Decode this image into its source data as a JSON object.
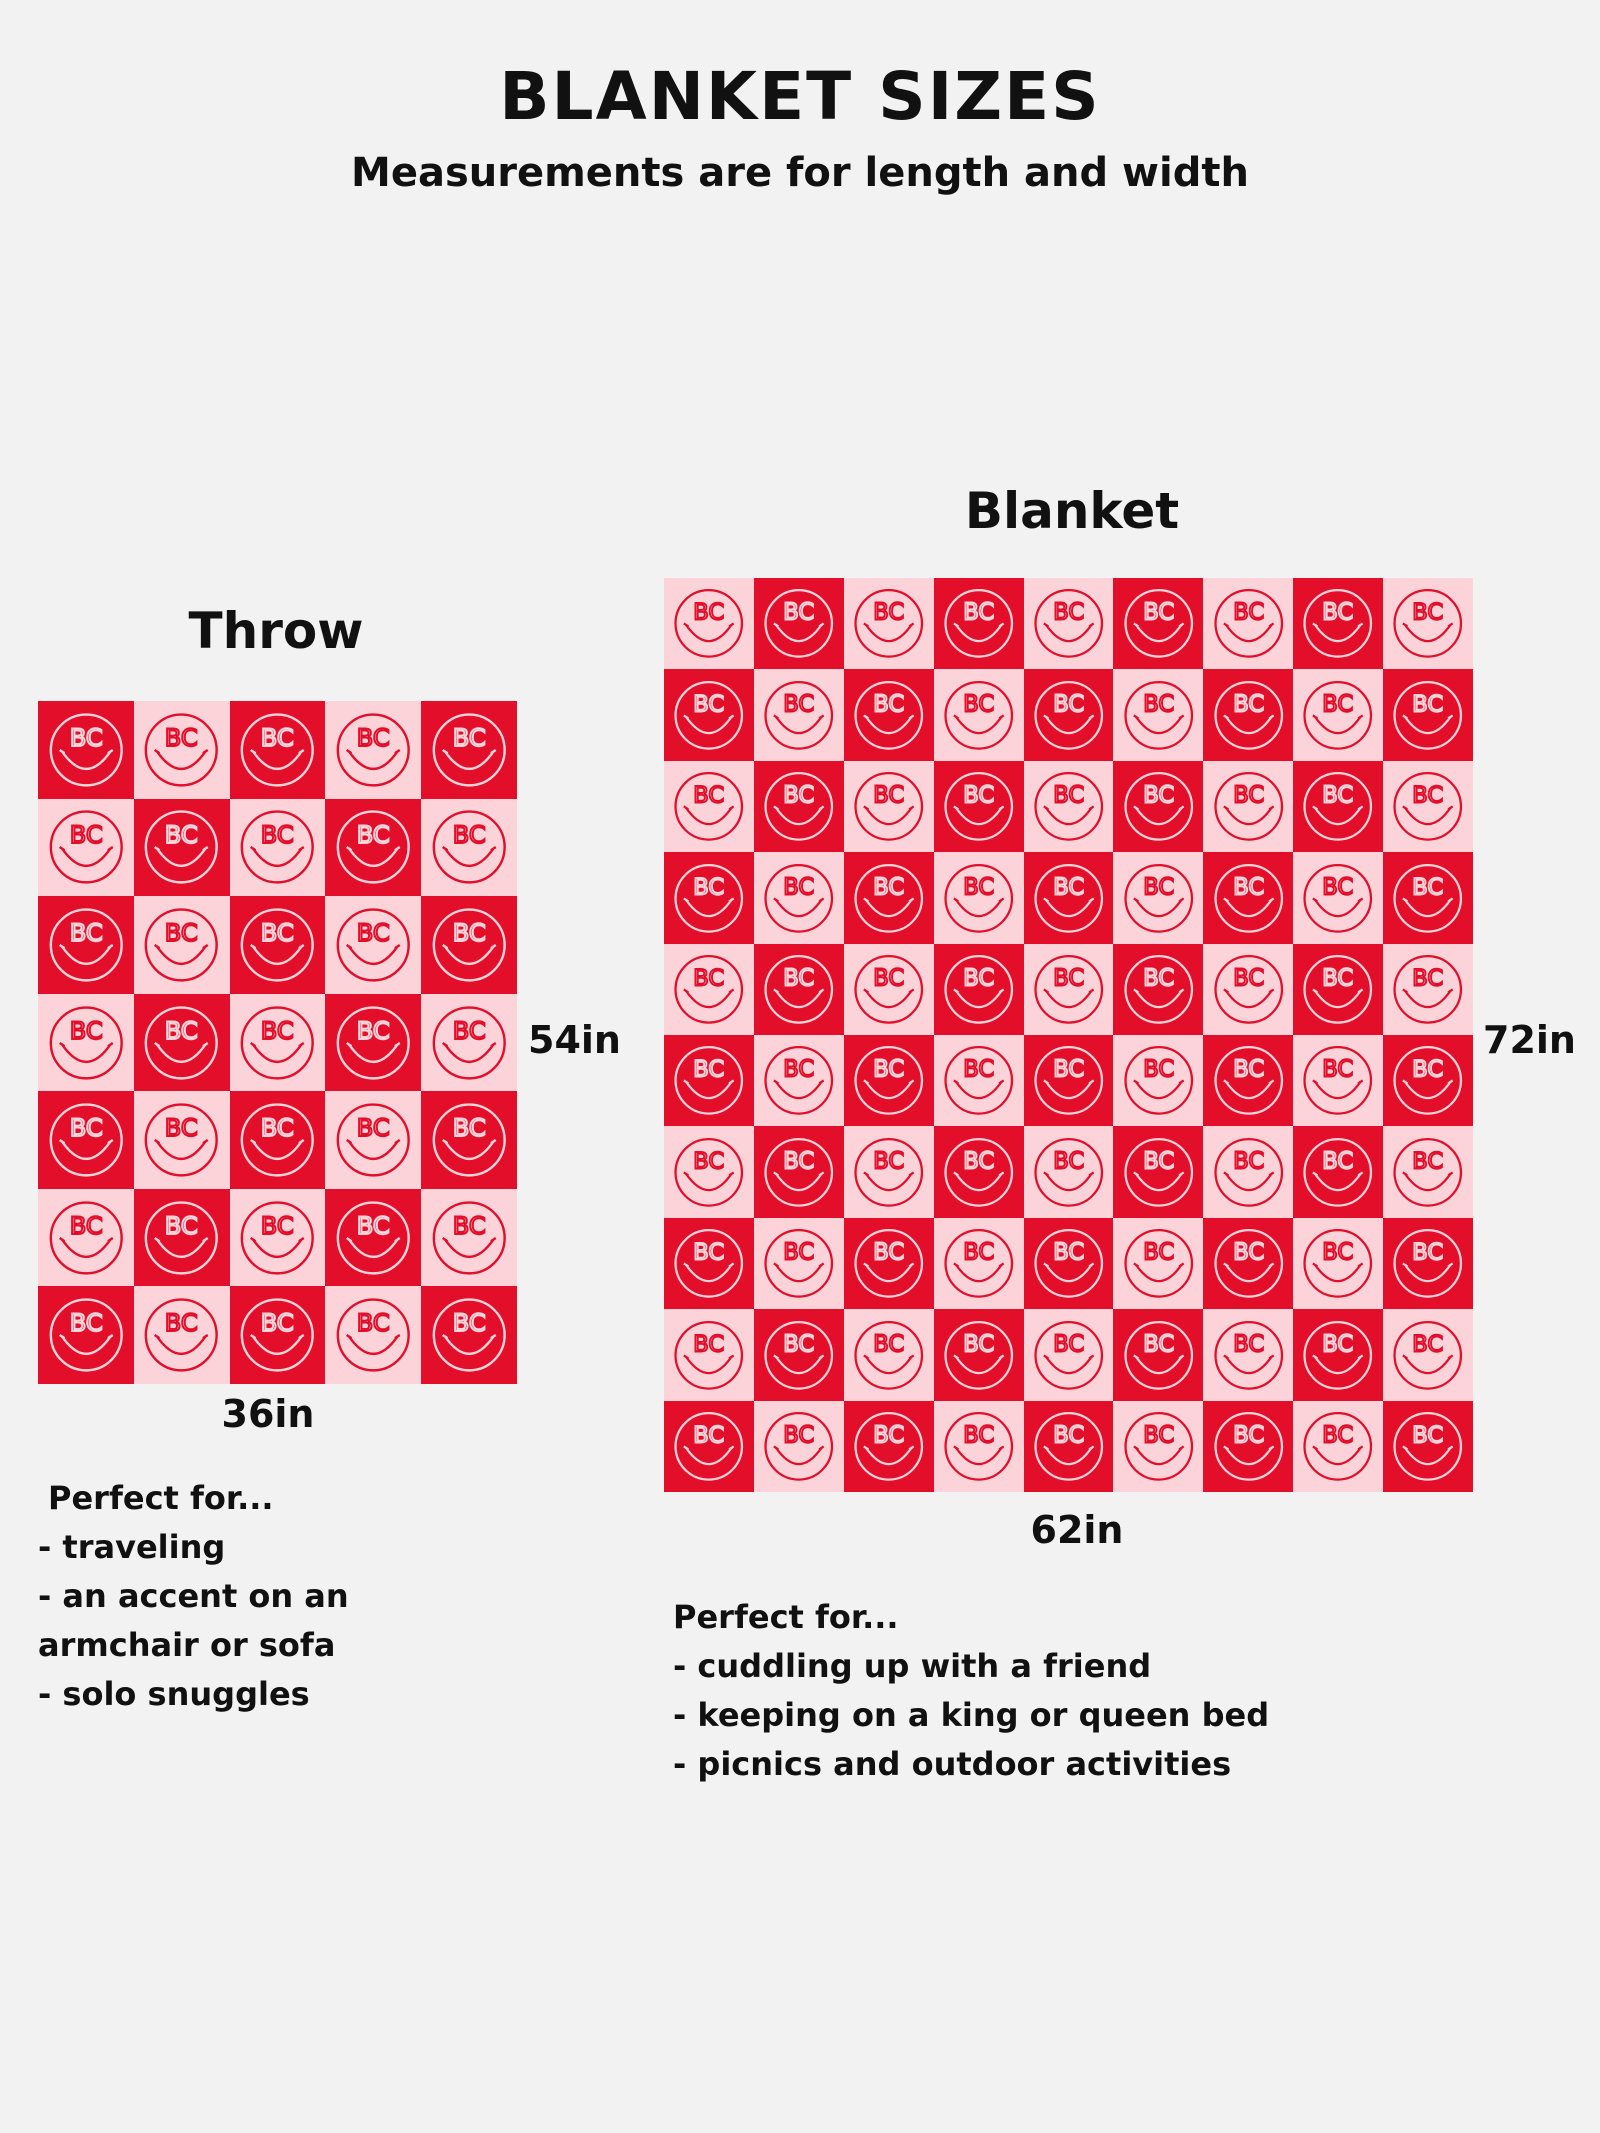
{
  "header": {
    "title": "BLANKET SIZES",
    "subtitle": "Measurements are for length and width"
  },
  "colors": {
    "red": "#e30e2a",
    "pink": "#fbd3d9",
    "background": "#f2f2f2"
  },
  "logo_text": "BC",
  "products": [
    {
      "name": "Throw",
      "length": "54in",
      "width": "36in",
      "pattern": {
        "columns": 5,
        "rows": 7,
        "first_tile": "red"
      },
      "perfect_for_heading": "Perfect for...",
      "uses": [
        "- traveling",
        "- an accent on an",
        "armchair or sofa",
        "- solo snuggles"
      ]
    },
    {
      "name": "Blanket",
      "length": "72in",
      "width": "62in",
      "pattern": {
        "columns": 9,
        "rows": 10,
        "first_tile": "pink"
      },
      "perfect_for_heading": "Perfect for...",
      "uses": [
        "- cuddling up with a friend",
        "- keeping on a king or queen bed",
        "- picnics and outdoor activities"
      ]
    }
  ]
}
